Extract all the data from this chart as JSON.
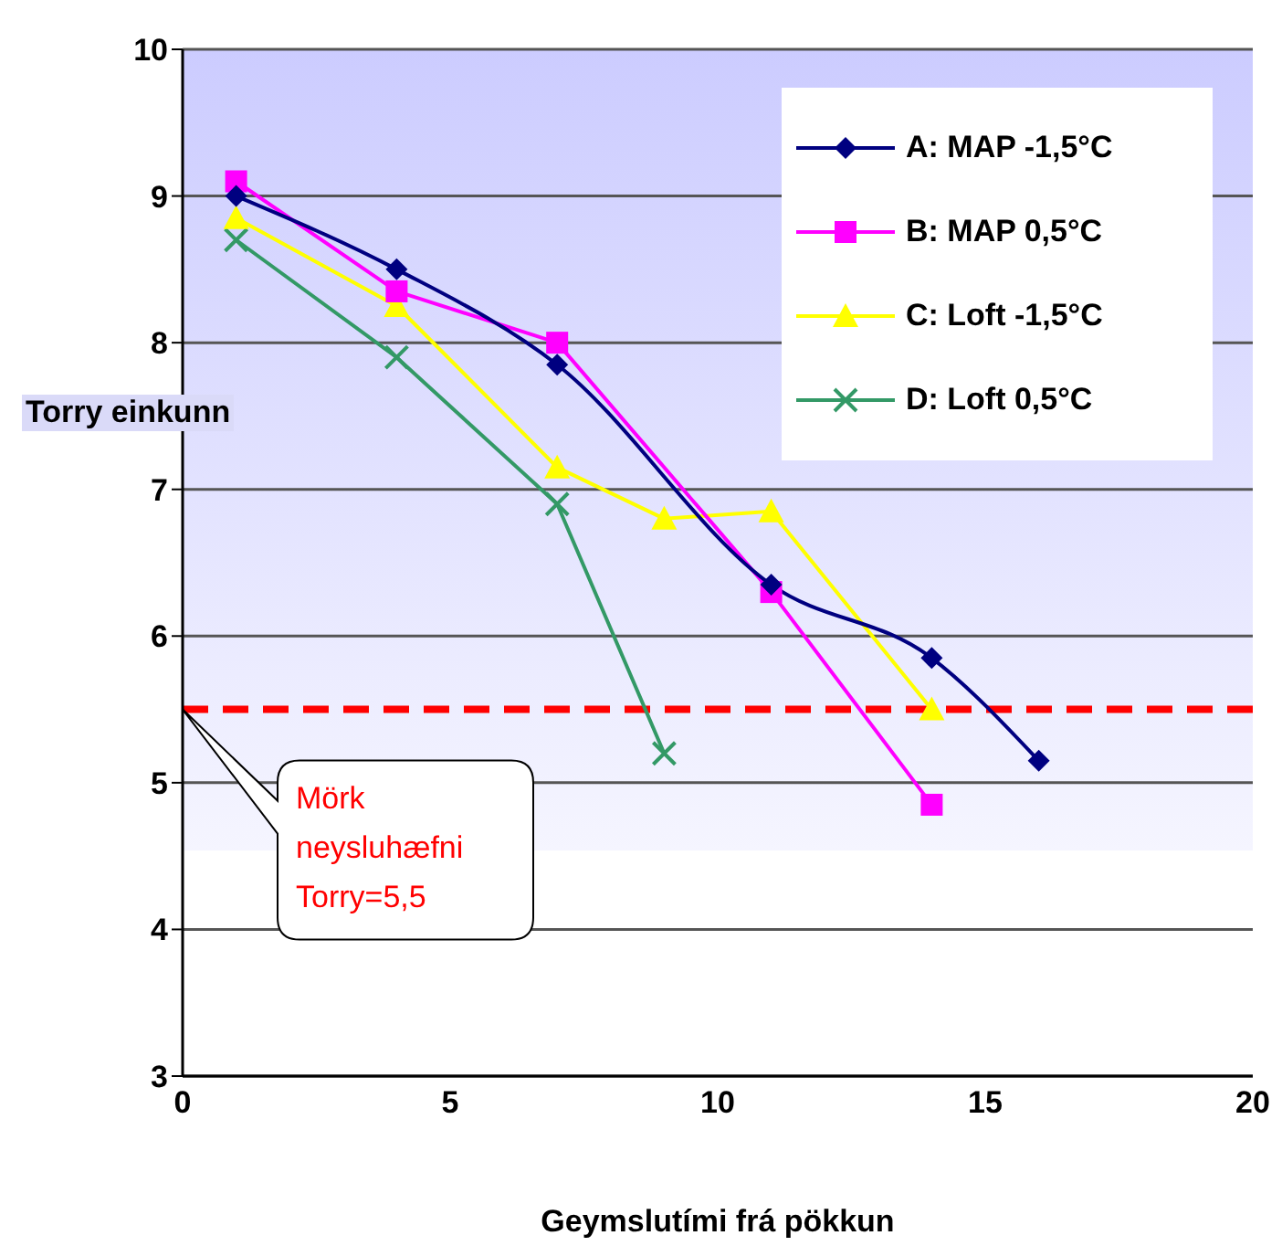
{
  "chart_data": {
    "type": "line",
    "xlabel": "Geymslutími frá pökkun",
    "ylabel": "Torry einkunn",
    "xlim": [
      0,
      20
    ],
    "xticks": [
      0,
      5,
      10,
      15,
      20
    ],
    "ylim": [
      3,
      10
    ],
    "yticks": [
      3,
      4,
      5,
      6,
      7,
      8,
      9,
      10
    ],
    "grid": "y",
    "legend": "top right",
    "series": [
      {
        "name": "A: MAP -1,5°C",
        "color": "#000080",
        "marker": "diamond",
        "x": [
          1,
          4,
          7,
          11,
          14,
          16
        ],
        "values": [
          9.0,
          8.5,
          7.85,
          6.35,
          5.85,
          5.15
        ]
      },
      {
        "name": "B: MAP 0,5°C",
        "color": "#ff00ff",
        "marker": "square",
        "x": [
          1,
          4,
          7,
          11,
          14
        ],
        "values": [
          9.1,
          8.35,
          8.0,
          6.3,
          4.85
        ]
      },
      {
        "name": "C: Loft -1,5°C",
        "color": "#ffff00",
        "marker": "triangle",
        "x": [
          1,
          4,
          7,
          9,
          11,
          14
        ],
        "values": [
          8.85,
          8.25,
          7.15,
          6.8,
          6.85,
          5.5
        ]
      },
      {
        "name": "D: Loft 0,5°C",
        "color": "#339966",
        "marker": "cross",
        "x": [
          1,
          4,
          7,
          9
        ],
        "values": [
          8.7,
          7.9,
          6.9,
          5.2
        ]
      }
    ],
    "ref_lines": [
      {
        "axis": "y",
        "value": 5.5,
        "label": "Mörk neysluhæfni Torry=5,5",
        "color": "#ff0000",
        "line_style": "dashed"
      }
    ]
  }
}
